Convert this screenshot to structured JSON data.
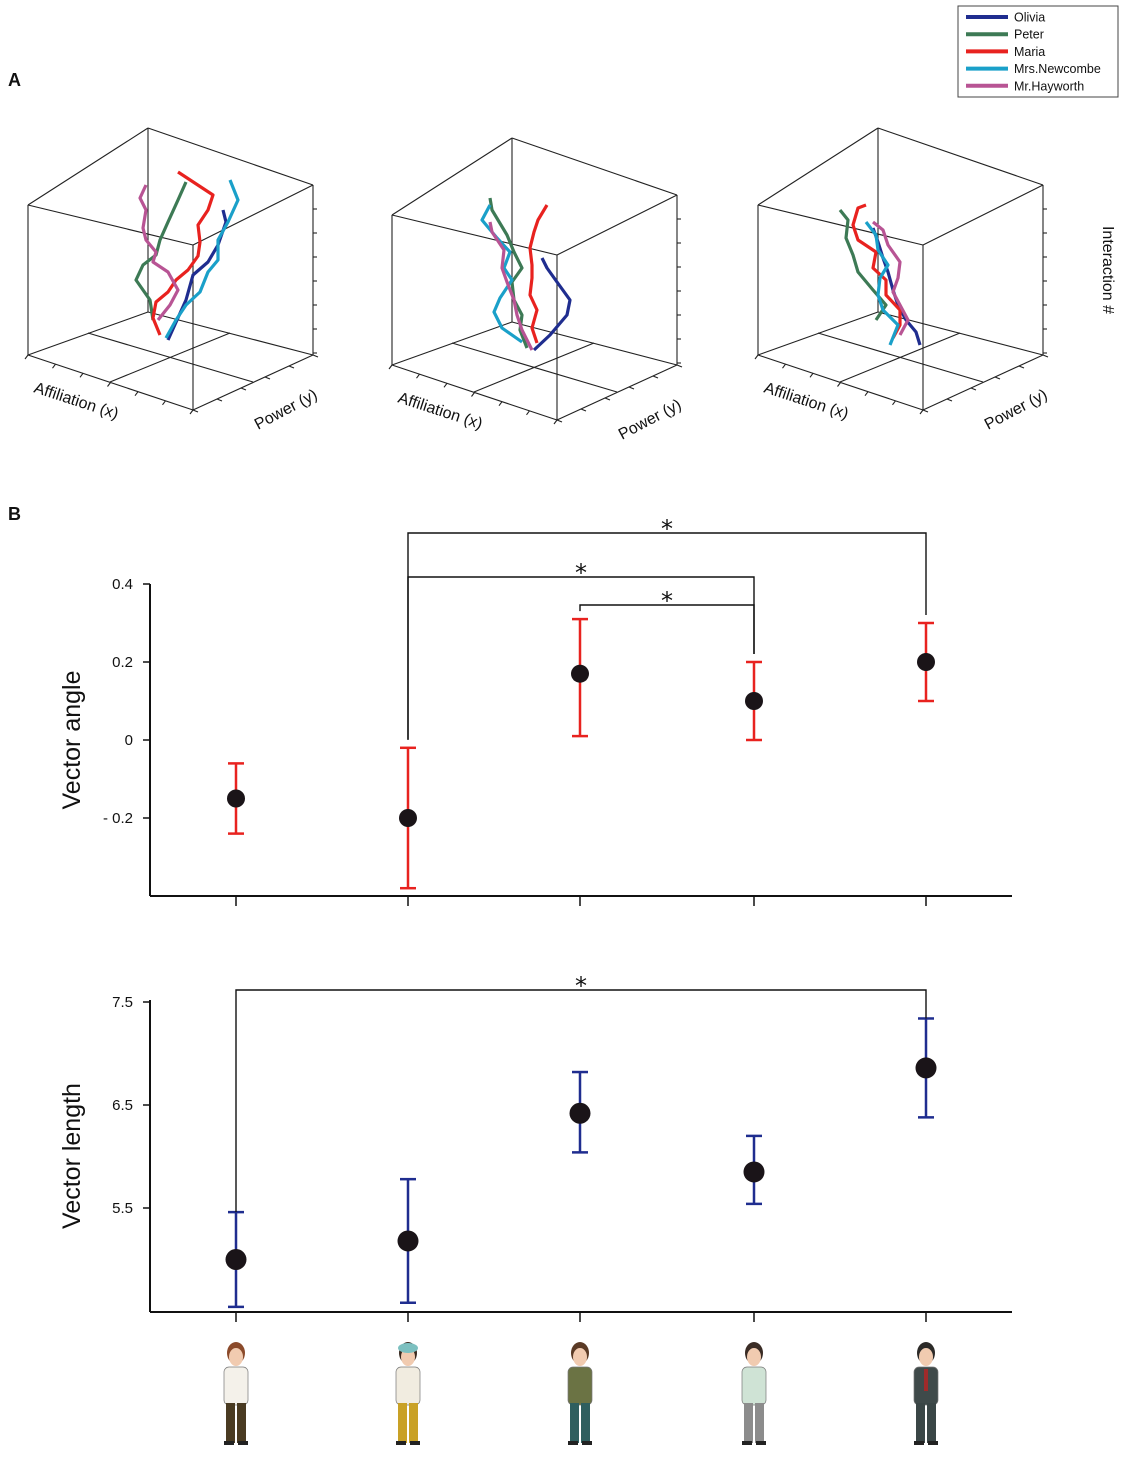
{
  "panels": {
    "a_label": "A",
    "b_label": "B"
  },
  "legend": [
    {
      "name": "Olivia",
      "color": "#1f2d8f"
    },
    {
      "name": "Peter",
      "color": "#3d7a55"
    },
    {
      "name": "Maria",
      "color": "#e8221f"
    },
    {
      "name": "Mrs.Newcombe",
      "color": "#1aa0c9"
    },
    {
      "name": "Mr.Hayworth",
      "color": "#b85494"
    }
  ],
  "panel_a": {
    "x_axis_label": "Affiliation (x)",
    "y_axis_label": "Power (y)",
    "z_axis_label": "Interaction #"
  },
  "chart_data": [
    {
      "type": "scatter",
      "ylabel": "Vector angle",
      "yticks": [
        "0.4",
        "0.2",
        "0",
        "- 0.2"
      ],
      "ylim": [
        -0.4,
        0.4
      ],
      "categories": [
        1,
        2,
        3,
        4,
        5
      ],
      "values": [
        -0.15,
        -0.2,
        0.17,
        0.1,
        0.2
      ],
      "error_low": [
        -0.24,
        -0.38,
        0.01,
        0.0,
        0.1
      ],
      "error_high": [
        -0.06,
        -0.02,
        0.31,
        0.2,
        0.3
      ],
      "error_color": "#e8221f",
      "significance": [
        {
          "from": 2,
          "to": 5,
          "label": "*"
        },
        {
          "from": 2,
          "to": 4,
          "label": "*"
        },
        {
          "from": 3,
          "to": 4,
          "label": "*"
        }
      ]
    },
    {
      "type": "scatter",
      "ylabel": "Vector length",
      "yticks": [
        "7.5",
        "6.5",
        "5.5"
      ],
      "ylim": [
        4.5,
        7.5
      ],
      "categories": [
        1,
        2,
        3,
        4,
        5
      ],
      "values": [
        5.0,
        5.18,
        6.42,
        5.85,
        6.86
      ],
      "error_low": [
        4.54,
        4.58,
        6.04,
        5.54,
        6.38
      ],
      "error_high": [
        5.46,
        5.78,
        6.82,
        6.2,
        7.34
      ],
      "error_color": "#1f2d8f",
      "significance": [
        {
          "from": 1,
          "to": 5,
          "label": "*"
        }
      ]
    }
  ]
}
